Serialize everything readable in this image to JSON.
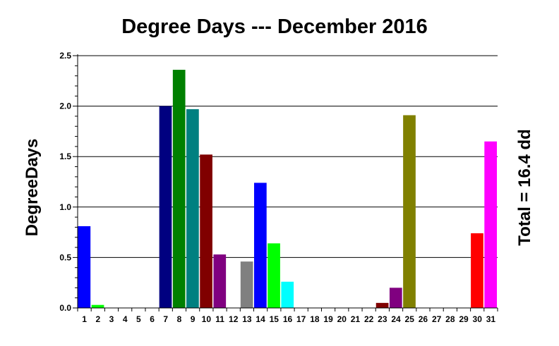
{
  "chart_data": {
    "type": "bar",
    "title": "Degree Days --- December 2016",
    "ylabel": "DegreeDays",
    "xlabel": "",
    "annotation": "Total = 16.4 dd",
    "ylim": [
      0,
      2.5
    ],
    "yticks": [
      "0.0",
      "0.5",
      "1.0",
      "1.5",
      "2.0",
      "2.5"
    ],
    "grid": true,
    "categories": [
      "1",
      "2",
      "3",
      "4",
      "5",
      "6",
      "7",
      "8",
      "9",
      "10",
      "11",
      "12",
      "13",
      "14",
      "15",
      "16",
      "17",
      "18",
      "19",
      "20",
      "21",
      "22",
      "23",
      "24",
      "25",
      "26",
      "27",
      "28",
      "29",
      "30",
      "31"
    ],
    "values": [
      0.81,
      0.03,
      0,
      0,
      0,
      0,
      2.0,
      2.36,
      1.97,
      1.52,
      0.53,
      0,
      0.46,
      1.24,
      0.64,
      0.26,
      0,
      0,
      0,
      0,
      0,
      0,
      0.05,
      0.2,
      1.91,
      0,
      0,
      0,
      0,
      0.74,
      1.65
    ],
    "colors": [
      "#0000ff",
      "#00ff00",
      "#ffffff",
      "#ffffff",
      "#ffffff",
      "#ffffff",
      "#000080",
      "#008000",
      "#008080",
      "#800000",
      "#800080",
      "#ffffff",
      "#808080",
      "#0000ff",
      "#00ff00",
      "#00ffff",
      "#ffffff",
      "#ffffff",
      "#ffffff",
      "#ffffff",
      "#ffffff",
      "#ffffff",
      "#800000",
      "#800080",
      "#808000",
      "#ffffff",
      "#ffffff",
      "#ffffff",
      "#ffffff",
      "#ff0000",
      "#ff00ff"
    ]
  }
}
